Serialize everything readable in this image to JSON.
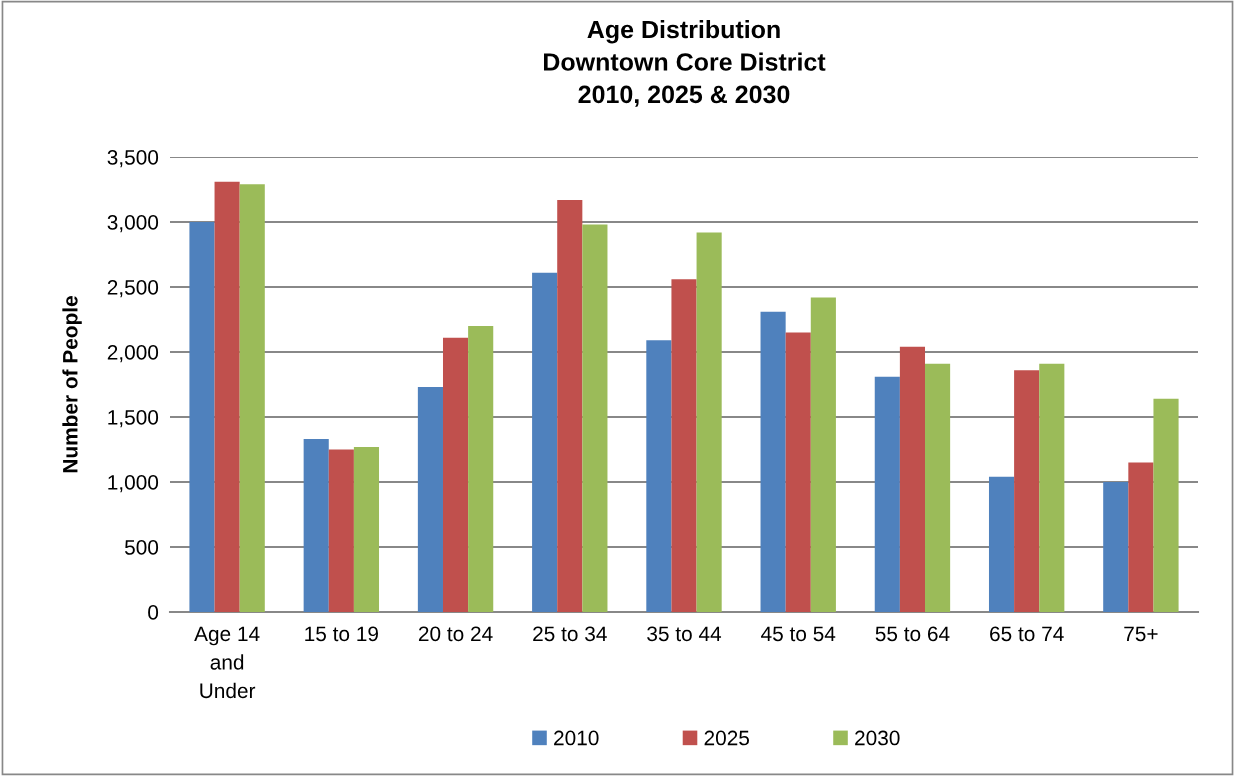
{
  "chart_data": {
    "type": "bar",
    "title": "Age Distribution\nDowntown Core District\n2010, 2025 & 2030",
    "ylabel": "Number of People",
    "categories": [
      "Age 14\nand\nUnder",
      "15 to 19",
      "20 to 24",
      "25 to 34",
      "35 to 44",
      "45 to 54",
      "55 to 64",
      "65 to 74",
      "75+"
    ],
    "series": [
      {
        "name": "2010",
        "color": "#4f81bd",
        "values": [
          3000,
          1330,
          1730,
          2610,
          2090,
          2310,
          1810,
          1040,
          1000
        ]
      },
      {
        "name": "2025",
        "color": "#c0504d",
        "values": [
          3310,
          1250,
          2110,
          3170,
          2560,
          2150,
          2040,
          1860,
          1150
        ]
      },
      {
        "name": "2030",
        "color": "#9bbb59",
        "values": [
          3290,
          1270,
          2200,
          2980,
          2920,
          2420,
          1910,
          1910,
          1640
        ]
      }
    ],
    "ylim": [
      0,
      3500
    ],
    "yticks": [
      {
        "value": 0,
        "label": "0"
      },
      {
        "value": 500,
        "label": "500"
      },
      {
        "value": 1000,
        "label": "1,000"
      },
      {
        "value": 1500,
        "label": "1,500"
      },
      {
        "value": 2000,
        "label": "2,000"
      },
      {
        "value": 2500,
        "label": "2,500"
      },
      {
        "value": 3000,
        "label": "3,000"
      },
      {
        "value": 3500,
        "label": "3,500"
      }
    ],
    "grid": "y",
    "legend": "bottom"
  }
}
